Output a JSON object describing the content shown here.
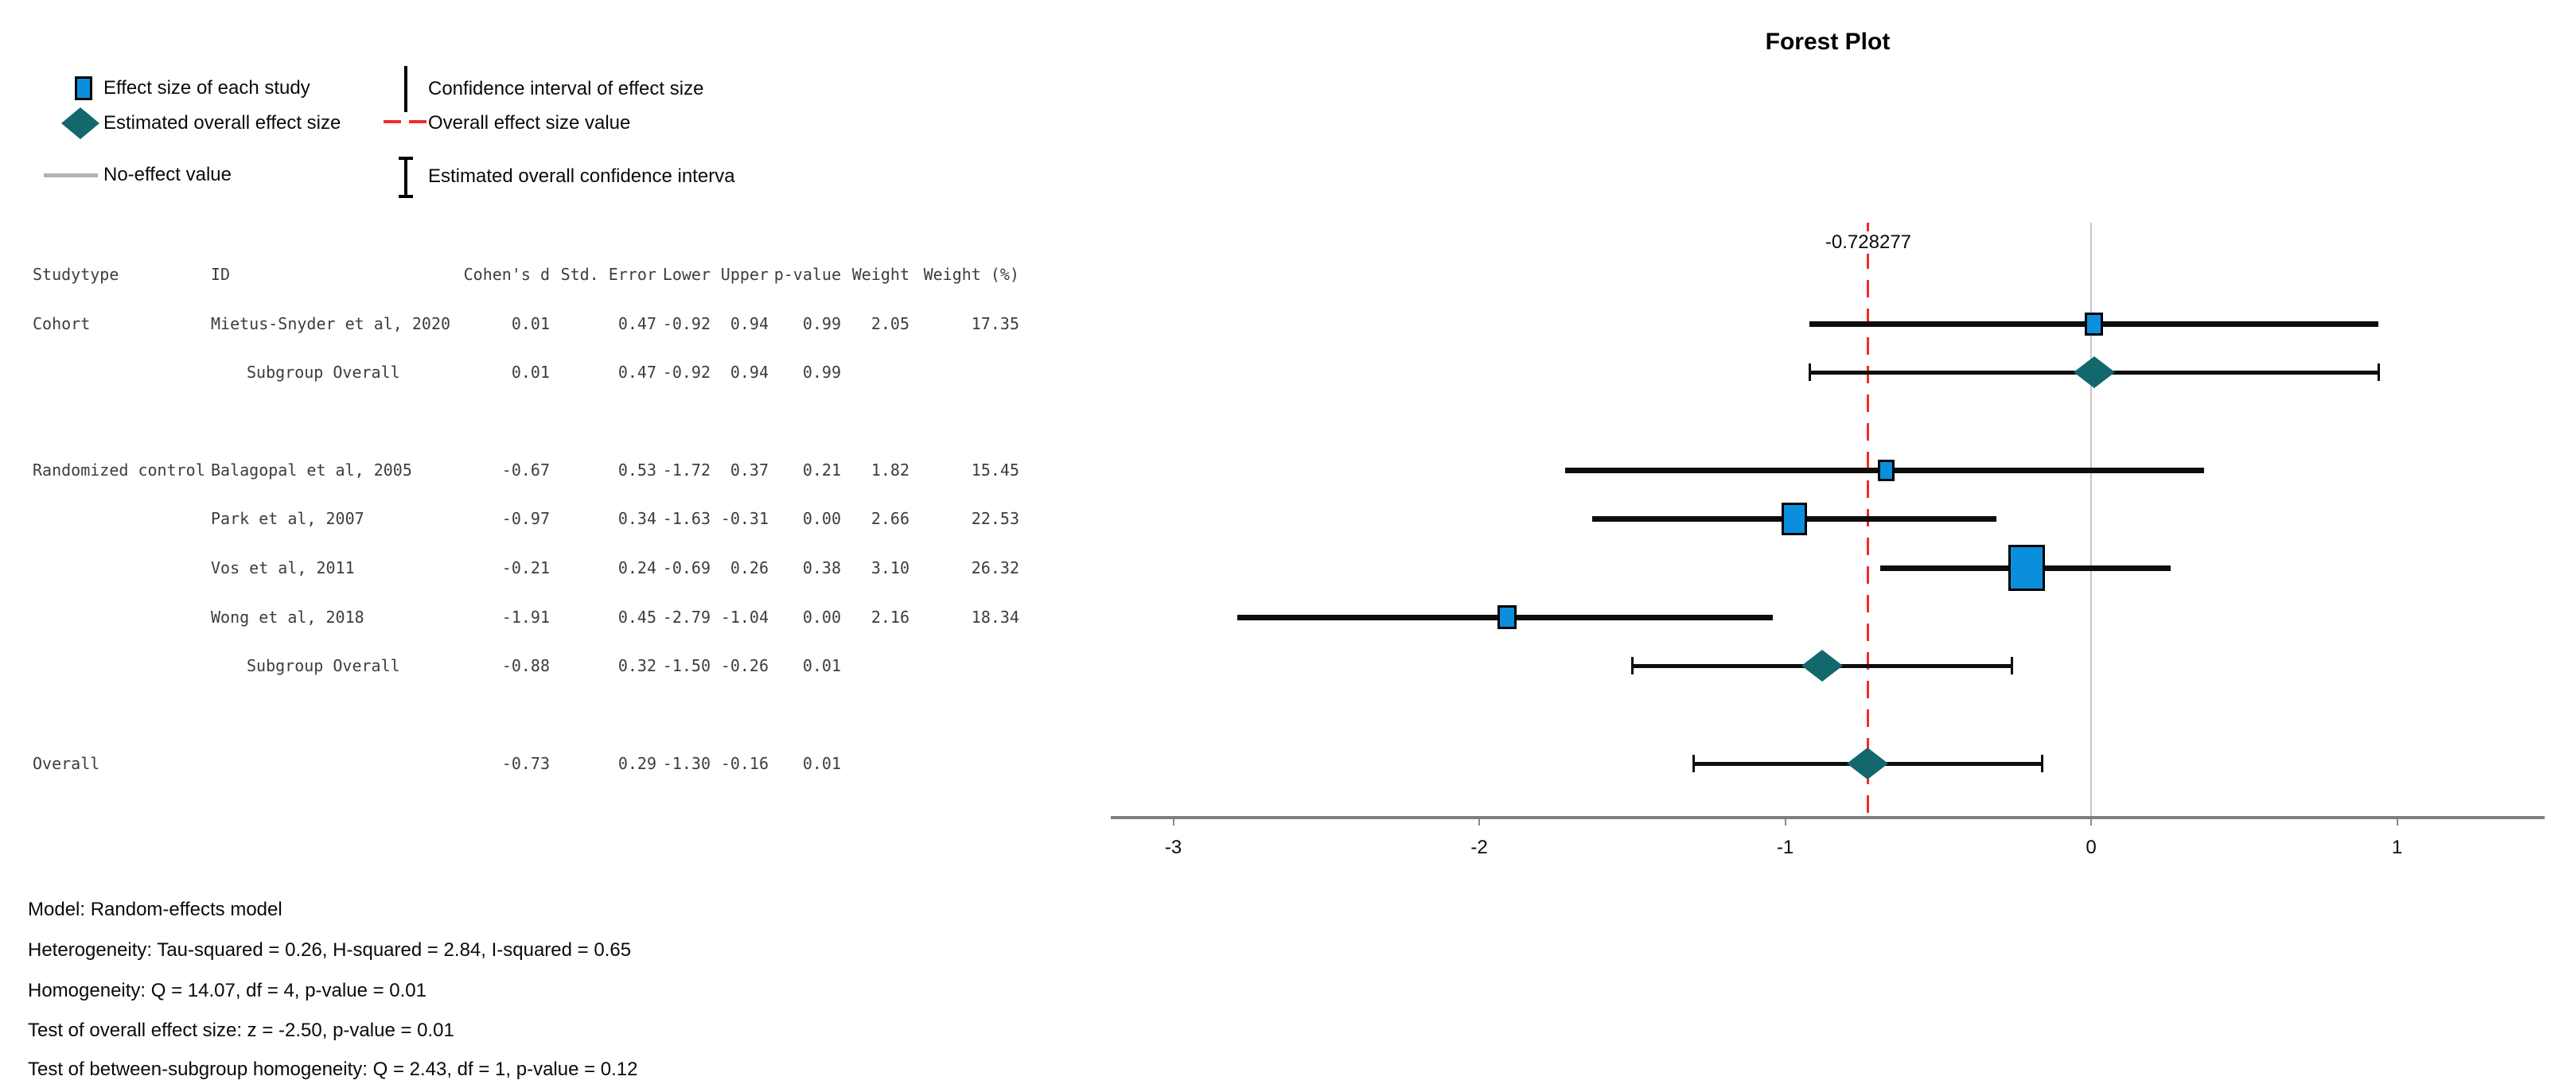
{
  "title": "Forest Plot",
  "legend": {
    "left": [
      {
        "icon": "blue-square",
        "label": "Effect size of each study"
      },
      {
        "icon": "teal-diamond",
        "label": "Estimated overall effect size"
      },
      {
        "icon": "gray-line",
        "label": "No-effect value"
      }
    ],
    "right": [
      {
        "icon": "black-vline",
        "label": "Confidence interval of effect size"
      },
      {
        "icon": "red-dashed-line",
        "label": "Overall effect size value"
      },
      {
        "icon": "i-beam",
        "label": "Estimated overall confidence interva"
      }
    ]
  },
  "table": {
    "headers": {
      "study_type": "Studytype",
      "id": "ID",
      "cohens_d": "Cohen's d",
      "std_error": "Std. Error",
      "lower": "Lower",
      "upper": "Upper",
      "p_value": "p-value",
      "weight": "Weight",
      "weight_pct": "Weight (%)"
    }
  },
  "chart_data": {
    "type": "scatter",
    "subtype": "forest-plot",
    "title": "Forest Plot",
    "xlim": [
      -3.2,
      1.5
    ],
    "x_ticks": [
      -3,
      -2,
      -1,
      0,
      1
    ],
    "grid": false,
    "no_effect_value": 0,
    "overall_effect_value": -0.728277,
    "overall_effect_label": "-0.728277",
    "rows": [
      {
        "study_type": "Cohort",
        "id": "Mietus-Snyder et al, 2020",
        "indent": false,
        "marker": "square",
        "cohens_d": "0.01",
        "std_error": "0.47",
        "lower": "-0.92",
        "upper": "0.94",
        "p_value": "0.99",
        "weight": "2.05",
        "weight_pct": "17.35"
      },
      {
        "study_type": "",
        "id": "Subgroup Overall",
        "indent": true,
        "marker": "diamond",
        "cohens_d": "0.01",
        "std_error": "0.47",
        "lower": "-0.92",
        "upper": "0.94",
        "p_value": "0.99",
        "weight": "",
        "weight_pct": ""
      },
      {
        "study_type": "Randomized control",
        "id": "Balagopal et al, 2005",
        "indent": false,
        "marker": "square",
        "cohens_d": "-0.67",
        "std_error": "0.53",
        "lower": "-1.72",
        "upper": "0.37",
        "p_value": "0.21",
        "weight": "1.82",
        "weight_pct": "15.45"
      },
      {
        "study_type": "",
        "id": "Park et al, 2007",
        "indent": false,
        "marker": "square",
        "cohens_d": "-0.97",
        "std_error": "0.34",
        "lower": "-1.63",
        "upper": "-0.31",
        "p_value": "0.00",
        "weight": "2.66",
        "weight_pct": "22.53"
      },
      {
        "study_type": "",
        "id": "Vos et al, 2011",
        "indent": false,
        "marker": "square",
        "cohens_d": "-0.21",
        "std_error": "0.24",
        "lower": "-0.69",
        "upper": "0.26",
        "p_value": "0.38",
        "weight": "3.10",
        "weight_pct": "26.32"
      },
      {
        "study_type": "",
        "id": "Wong et al, 2018",
        "indent": false,
        "marker": "square",
        "cohens_d": "-1.91",
        "std_error": "0.45",
        "lower": "-2.79",
        "upper": "-1.04",
        "p_value": "0.00",
        "weight": "2.16",
        "weight_pct": "18.34"
      },
      {
        "study_type": "",
        "id": "Subgroup Overall",
        "indent": true,
        "marker": "diamond",
        "cohens_d": "-0.88",
        "std_error": "0.32",
        "lower": "-1.50",
        "upper": "-0.26",
        "p_value": "0.01",
        "weight": "",
        "weight_pct": ""
      },
      {
        "study_type": "Overall",
        "id": "",
        "indent": false,
        "marker": "diamond",
        "cohens_d": "-0.73",
        "std_error": "0.29",
        "lower": "-1.30",
        "upper": "-0.16",
        "p_value": "0.01",
        "weight": "",
        "weight_pct": ""
      }
    ]
  },
  "footer_stats": [
    "Model: Random-effects model",
    "Heterogeneity: Tau-squared = 0.26, H-squared = 2.84, I-squared = 0.65",
    "Homogeneity: Q = 14.07, df = 4, p-value = 0.01",
    "Test of overall effect size: z = -2.50, p-value = 0.01",
    "Test of between-subgroup homogeneity: Q = 2.43, df = 1, p-value = 0.12"
  ],
  "colors": {
    "study_marker_blue": "#0b8fdd",
    "overall_marker_teal": "#12686c",
    "overall_line_red": "#f42a2a",
    "axis_gray": "#7f7f7f",
    "no_effect_line_gray": "#c6c6c6",
    "legend_no_effect_gray": "#b3b3b3",
    "ci_black": "#0d0d0d",
    "table_text": "#3d3d3d"
  }
}
